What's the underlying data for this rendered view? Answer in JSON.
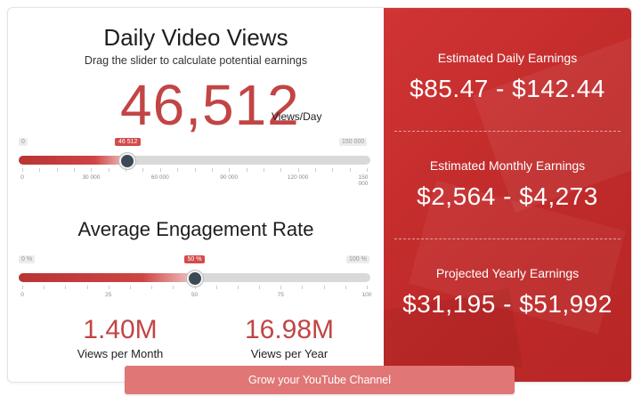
{
  "views_slider": {
    "title": "Daily Video Views",
    "subtitle": "Drag the slider to calculate potential earnings",
    "value_display": "46,512",
    "unit": "Views/Day",
    "min_label": "0",
    "max_label": "150 000",
    "bubble": "46 512",
    "value": 46512,
    "min": 0,
    "max": 150000,
    "ticks": [
      "0",
      "30 000",
      "60 000",
      "90 000",
      "120 000",
      "150 000"
    ]
  },
  "engagement_slider": {
    "title": "Average Engagement Rate",
    "min_label": "0 %",
    "max_label": "100 %",
    "bubble": "50 %",
    "value": 50,
    "min": 0,
    "max": 100,
    "ticks": [
      "0",
      "25",
      "50",
      "75",
      "100"
    ]
  },
  "stats": {
    "monthly_value": "1.40M",
    "monthly_label": "Views per Month",
    "yearly_value": "16.98M",
    "yearly_label": "Views per Year"
  },
  "earnings": {
    "daily_label": "Estimated Daily Earnings",
    "daily_value": "$85.47 - $142.44",
    "monthly_label": "Estimated Monthly Earnings",
    "monthly_value": "$2,564 - $4,273",
    "yearly_label": "Projected Yearly Earnings",
    "yearly_value": "$31,195 - $51,992"
  },
  "cta": {
    "label": "Grow your YouTube Channel"
  },
  "colors": {
    "accent": "#c24545",
    "panel": "#c92f2f",
    "thumb": "#3c4a55",
    "button": "#e07676"
  }
}
